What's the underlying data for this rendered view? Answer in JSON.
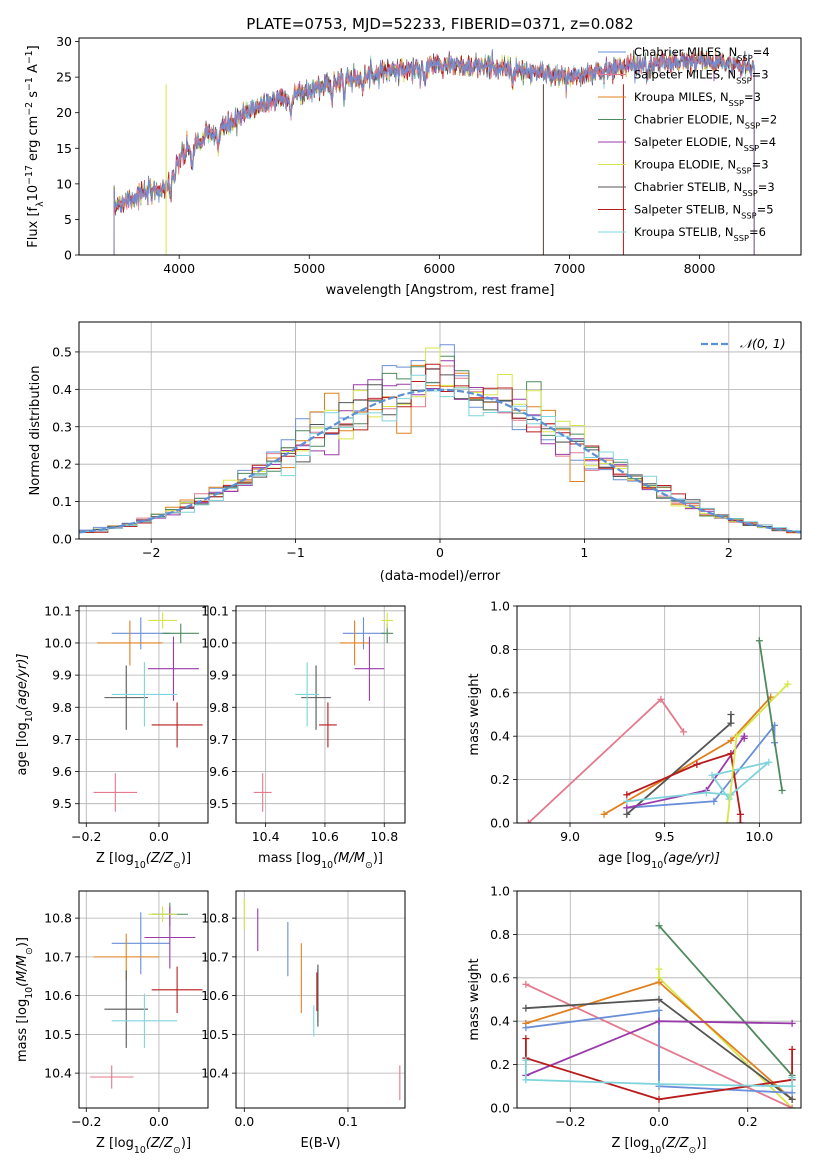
{
  "colors": {
    "chabrier_miles": "#6a8fd8",
    "salpeter_miles": "#e37a8e",
    "kroupa_miles": "#e0801e",
    "chabrier_elodie": "#4f8a5e",
    "salpeter_elodie": "#9a3aaa",
    "kroupa_elodie": "#d6e64a",
    "chabrier_stelib": "#555555",
    "salpeter_stelib": "#b81c1c",
    "kroupa_stelib": "#7fd4dc",
    "gaussian": "#5b8fd6"
  },
  "chart_data": [
    {
      "id": "spectrum",
      "type": "line",
      "title": "PLATE=0753, MJD=52233, FIBERID=0371, z=0.082",
      "xlabel": "wavelength [Angstrom, rest frame]",
      "ylabel_main": "Flux [f",
      "ylabel_sub": "λ",
      "ylabel_rest": "10",
      "ylabel_exp1": "−17",
      "ylabel_mid": " erg cm",
      "ylabel_exp2": "−2",
      "ylabel_mid2": " s",
      "ylabel_exp3": "−1",
      "ylabel_mid3": " A",
      "ylabel_exp4": "−1",
      "ylabel_end": "]",
      "xlim": [
        3230,
        8780
      ],
      "ylim": [
        0,
        30.5
      ],
      "xticks": [
        4000,
        5000,
        6000,
        7000,
        8000
      ],
      "yticks": [
        0,
        5,
        10,
        15,
        20,
        25,
        30
      ],
      "grid": false,
      "legend": "upper-right",
      "series": [
        {
          "label_main": "Chabrier MILES, N",
          "label_sub": "SSP",
          "label_end": "=4",
          "color": "#6a8fd8"
        },
        {
          "label_main": "Salpeter MILES, N",
          "label_sub": "SSP",
          "label_end": "=3",
          "color": "#e37a8e"
        },
        {
          "label_main": "Kroupa MILES, N",
          "label_sub": "SSP",
          "label_end": "=3",
          "color": "#e0801e"
        },
        {
          "label_main": "Chabrier ELODIE, N",
          "label_sub": "SSP",
          "label_end": "=2",
          "color": "#4f8a5e"
        },
        {
          "label_main": "Salpeter ELODIE, N",
          "label_sub": "SSP",
          "label_end": "=4",
          "color": "#9a3aaa"
        },
        {
          "label_main": "Kroupa ELODIE, N",
          "label_sub": "SSP",
          "label_end": "=3",
          "color": "#d6e64a"
        },
        {
          "label_main": "Chabrier STELIB, N",
          "label_sub": "SSP",
          "label_end": "=3",
          "color": "#555555"
        },
        {
          "label_main": "Salpeter STELIB, N",
          "label_sub": "SSP",
          "label_end": "=5",
          "color": "#b81c1c"
        },
        {
          "label_main": "Kroupa STELIB, N",
          "label_sub": "SSP",
          "label_end": "=6",
          "color": "#7fd4dc"
        }
      ],
      "continuum": {
        "x": [
          3500,
          3700,
          3900,
          4000,
          4200,
          4400,
          4600,
          4800,
          5000,
          5200,
          5400,
          5600,
          5800,
          6000,
          6200,
          6400,
          6600,
          6800,
          7000,
          7200,
          7400,
          7600,
          7800,
          8000,
          8200,
          8400
        ],
        "y": [
          7,
          8.5,
          9.5,
          13.5,
          16.5,
          18.5,
          21,
          22,
          23,
          24.5,
          25,
          26,
          26,
          27,
          26.5,
          26.5,
          26,
          25.5,
          25,
          25.5,
          26.5,
          27,
          27,
          27.2,
          27,
          26.5
        ]
      }
    },
    {
      "id": "residuals",
      "type": "histogram",
      "xlabel": "(data-model)/error",
      "ylabel": "Normed distribution",
      "xlim": [
        -2.5,
        2.5
      ],
      "ylim": [
        0,
        0.58
      ],
      "xticks": [
        -2,
        -1,
        0,
        1,
        2
      ],
      "yticks": [
        0.0,
        0.1,
        0.2,
        0.3,
        0.4,
        0.5
      ],
      "grid": true,
      "legend": "upper-right",
      "legend_label": "𝒩(0, 1)",
      "gaussian": {
        "mu": 0,
        "sigma": 1
      }
    },
    {
      "id": "age-vs-z",
      "type": "errorbar",
      "xlabel_main": "Z [log",
      "xlabel_sub": "10",
      "xlabel_end": "(Z/Z",
      "xlabel_sun": "⊙",
      "xlabel_close": ")]",
      "ylabel_main": "age  [log",
      "ylabel_sub": "10",
      "ylabel_end": "(age/yr)]",
      "xlim": [
        -0.22,
        0.135
      ],
      "ylim": [
        9.44,
        10.115
      ],
      "xticks": [
        -0.2,
        0.0
      ],
      "yticks": [
        9.5,
        9.6,
        9.7,
        9.8,
        9.9,
        10.0,
        10.1
      ],
      "grid": true,
      "points": [
        {
          "x": -0.05,
          "xerr": 0.08,
          "y": 10.03,
          "yerr": 0.05,
          "color": "#6a8fd8"
        },
        {
          "x": -0.12,
          "xerr": 0.06,
          "y": 9.535,
          "yerr": 0.06,
          "color": "#e37a8e"
        },
        {
          "x": -0.08,
          "xerr": 0.09,
          "y": 10.0,
          "yerr": 0.07,
          "color": "#e0801e"
        },
        {
          "x": 0.06,
          "xerr": 0.05,
          "y": 10.03,
          "yerr": 0.03,
          "color": "#4f8a5e"
        },
        {
          "x": 0.04,
          "xerr": 0.07,
          "y": 9.92,
          "yerr": 0.1,
          "color": "#9a3aaa"
        },
        {
          "x": 0.01,
          "xerr": 0.04,
          "y": 10.07,
          "yerr": 0.025,
          "color": "#d6e64a"
        },
        {
          "x": -0.09,
          "xerr": 0.06,
          "y": 9.83,
          "yerr": 0.1,
          "color": "#555555"
        },
        {
          "x": 0.05,
          "xerr": 0.07,
          "y": 9.745,
          "yerr": 0.07,
          "color": "#b81c1c"
        },
        {
          "x": -0.04,
          "xerr": 0.09,
          "y": 9.84,
          "yerr": 0.1,
          "color": "#7fd4dc"
        }
      ]
    },
    {
      "id": "age-vs-mass",
      "type": "errorbar",
      "xlabel_main": "mass [log",
      "xlabel_sub": "10",
      "xlabel_end": "(M/M",
      "xlabel_sun": "⊙",
      "xlabel_close": ")]",
      "ylabel_main": "",
      "xlim": [
        10.3,
        10.87
      ],
      "ylim": [
        9.44,
        10.115
      ],
      "xticks": [
        10.4,
        10.6,
        10.8
      ],
      "yticks": [
        9.5,
        9.6,
        9.7,
        9.8,
        9.9,
        10.0,
        10.1
      ],
      "grid": true,
      "points": [
        {
          "x": 10.73,
          "xerr": 0.07,
          "y": 10.03,
          "yerr": 0.05,
          "color": "#6a8fd8"
        },
        {
          "x": 10.39,
          "xerr": 0.03,
          "y": 9.535,
          "yerr": 0.06,
          "color": "#e37a8e"
        },
        {
          "x": 10.7,
          "xerr": 0.05,
          "y": 10.0,
          "yerr": 0.07,
          "color": "#e0801e"
        },
        {
          "x": 10.81,
          "xerr": 0.02,
          "y": 10.03,
          "yerr": 0.03,
          "color": "#4f8a5e"
        },
        {
          "x": 10.75,
          "xerr": 0.05,
          "y": 9.92,
          "yerr": 0.1,
          "color": "#9a3aaa"
        },
        {
          "x": 10.81,
          "xerr": 0.02,
          "y": 10.07,
          "yerr": 0.025,
          "color": "#d6e64a"
        },
        {
          "x": 10.57,
          "xerr": 0.05,
          "y": 9.83,
          "yerr": 0.1,
          "color": "#555555"
        },
        {
          "x": 10.61,
          "xerr": 0.03,
          "y": 9.745,
          "yerr": 0.07,
          "color": "#b81c1c"
        },
        {
          "x": 10.54,
          "xerr": 0.04,
          "y": 9.84,
          "yerr": 0.1,
          "color": "#7fd4dc"
        }
      ]
    },
    {
      "id": "weight-vs-age",
      "type": "line",
      "xlabel_main": "age  [log",
      "xlabel_sub": "10",
      "xlabel_end": "(age/yr)]",
      "ylabel": "mass weight",
      "xlim": [
        8.72,
        10.22
      ],
      "ylim": [
        0,
        1.0
      ],
      "xticks": [
        9.0,
        9.5,
        10.0
      ],
      "yticks": [
        0.0,
        0.2,
        0.4,
        0.6,
        0.8,
        1.0
      ],
      "grid": true,
      "series": [
        {
          "color": "#e37a8e",
          "x": [
            8.78,
            9.48,
            9.6
          ],
          "y": [
            0.0,
            0.57,
            0.42
          ]
        },
        {
          "color": "#e0801e",
          "x": [
            9.18,
            9.85,
            10.06
          ],
          "y": [
            0.04,
            0.38,
            0.58
          ]
        },
        {
          "color": "#6a8fd8",
          "x": [
            9.3,
            9.76,
            10.08,
            10.08
          ],
          "y": [
            0.07,
            0.1,
            0.45,
            0.37
          ]
        },
        {
          "color": "#555555",
          "x": [
            9.3,
            9.85,
            9.85
          ],
          "y": [
            0.04,
            0.46,
            0.5
          ]
        },
        {
          "color": "#9a3aaa",
          "x": [
            9.3,
            9.72,
            9.92,
            9.92
          ],
          "y": [
            0.07,
            0.15,
            0.4,
            0.39
          ]
        },
        {
          "color": "#b81c1c",
          "x": [
            9.3,
            9.67,
            9.85,
            9.9,
            9.9
          ],
          "y": [
            0.13,
            0.27,
            0.32,
            0.04,
            0.0
          ]
        },
        {
          "color": "#7fd4dc",
          "x": [
            9.3,
            9.72,
            9.85,
            10.05,
            9.75,
            9.84
          ],
          "y": [
            0.1,
            0.14,
            0.13,
            0.28,
            0.22,
            0.11
          ]
        },
        {
          "color": "#d6e64a",
          "x": [
            9.83,
            9.88,
            10.15
          ],
          "y": [
            0.0,
            0.4,
            0.64
          ]
        },
        {
          "color": "#4f8a5e",
          "x": [
            10.0,
            10.12
          ],
          "y": [
            0.84,
            0.15
          ]
        }
      ]
    },
    {
      "id": "mass-vs-z",
      "type": "errorbar",
      "xlabel_main": "Z [log",
      "xlabel_sub": "10",
      "xlabel_end": "(Z/Z",
      "xlabel_sun": "⊙",
      "xlabel_close": ")]",
      "ylabel_main": "mass [log",
      "ylabel_sub": "10",
      "ylabel_end": "(M/M",
      "ylabel_sun": "⊙",
      "ylabel_close": ")]",
      "xlim": [
        -0.22,
        0.135
      ],
      "ylim": [
        10.31,
        10.87
      ],
      "xticks": [
        -0.2,
        0.0
      ],
      "yticks": [
        10.4,
        10.5,
        10.6,
        10.7,
        10.8
      ],
      "grid": true,
      "points": [
        {
          "x": -0.05,
          "xerr": 0.08,
          "y": 10.735,
          "yerr": 0.08,
          "color": "#6a8fd8"
        },
        {
          "x": -0.13,
          "xerr": 0.06,
          "y": 10.39,
          "yerr": 0.03,
          "color": "#e37a8e"
        },
        {
          "x": -0.09,
          "xerr": 0.09,
          "y": 10.7,
          "yerr": 0.06,
          "color": "#e0801e"
        },
        {
          "x": 0.03,
          "xerr": 0.05,
          "y": 10.81,
          "yerr": 0.03,
          "color": "#4f8a5e"
        },
        {
          "x": 0.03,
          "xerr": 0.07,
          "y": 10.75,
          "yerr": 0.08,
          "color": "#9a3aaa"
        },
        {
          "x": 0.01,
          "xerr": 0.04,
          "y": 10.81,
          "yerr": 0.02,
          "color": "#d6e64a"
        },
        {
          "x": -0.09,
          "xerr": 0.06,
          "y": 10.565,
          "yerr": 0.1,
          "color": "#555555"
        },
        {
          "x": 0.05,
          "xerr": 0.07,
          "y": 10.615,
          "yerr": 0.06,
          "color": "#b81c1c"
        },
        {
          "x": -0.04,
          "xerr": 0.09,
          "y": 10.535,
          "yerr": 0.07,
          "color": "#7fd4dc"
        }
      ]
    },
    {
      "id": "mass-vs-ebv",
      "type": "errorbar",
      "xlabel": "E(B-V)",
      "xlim": [
        -0.008,
        0.155
      ],
      "ylim": [
        10.31,
        10.87
      ],
      "xticks": [
        0.0,
        0.1
      ],
      "yticks": [
        10.4,
        10.5,
        10.6,
        10.7,
        10.8
      ],
      "grid": true,
      "points": [
        {
          "x": 0.042,
          "xerr": 0.0,
          "y": 10.72,
          "yerr": 0.07,
          "color": "#6a8fd8"
        },
        {
          "x": 0.15,
          "xerr": 0.0,
          "y": 10.375,
          "yerr": 0.045,
          "color": "#e37a8e"
        },
        {
          "x": 0.055,
          "xerr": 0.0,
          "y": 10.645,
          "yerr": 0.09,
          "color": "#e0801e"
        },
        {
          "x": 0.071,
          "xerr": 0.0,
          "y": 10.6,
          "yerr": 0.07,
          "color": "#4f8a5e"
        },
        {
          "x": 0.013,
          "xerr": 0.0,
          "y": 10.77,
          "yerr": 0.055,
          "color": "#9a3aaa"
        },
        {
          "x": 0.0,
          "xerr": 0.0,
          "y": 10.81,
          "yerr": 0.04,
          "color": "#d6e64a"
        },
        {
          "x": 0.071,
          "xerr": 0.0,
          "y": 10.6,
          "yerr": 0.08,
          "color": "#555555"
        },
        {
          "x": 0.07,
          "xerr": 0.0,
          "y": 10.61,
          "yerr": 0.05,
          "color": "#b81c1c"
        },
        {
          "x": 0.067,
          "xerr": 0.0,
          "y": 10.535,
          "yerr": 0.04,
          "color": "#7fd4dc"
        }
      ]
    },
    {
      "id": "weight-vs-z",
      "type": "line",
      "xlabel_main": "Z [log",
      "xlabel_sub": "10",
      "xlabel_end": "(Z/Z",
      "xlabel_sun": "⊙",
      "xlabel_close": ")]",
      "ylabel": "mass weight",
      "xlim": [
        -0.32,
        0.32
      ],
      "ylim": [
        0,
        1.0
      ],
      "xticks": [
        -0.2,
        0.0,
        0.2
      ],
      "yticks": [
        0.0,
        0.2,
        0.4,
        0.6,
        0.8,
        1.0
      ],
      "grid": true,
      "series": [
        {
          "color": "#4f8a5e",
          "x": [
            0.0,
            0.3
          ],
          "y": [
            0.84,
            0.15
          ]
        },
        {
          "color": "#d6e64a",
          "x": [
            0.0,
            0.0,
            0.3
          ],
          "y": [
            0.64,
            0.6,
            0.0
          ]
        },
        {
          "color": "#e0801e",
          "x": [
            -0.3,
            0.0,
            0.3
          ],
          "y": [
            0.39,
            0.58,
            0.04
          ]
        },
        {
          "color": "#e37a8e",
          "x": [
            -0.3,
            0.3
          ],
          "y": [
            0.57,
            0.0
          ]
        },
        {
          "color": "#555555",
          "x": [
            -0.3,
            0.0,
            0.3
          ],
          "y": [
            0.46,
            0.5,
            0.04
          ]
        },
        {
          "color": "#6a8fd8",
          "x": [
            -0.3,
            0.0,
            0.0,
            0.3
          ],
          "y": [
            0.37,
            0.45,
            0.1,
            0.07
          ]
        },
        {
          "color": "#9a3aaa",
          "x": [
            -0.3,
            0.0,
            0.3
          ],
          "y": [
            0.15,
            0.4,
            0.39
          ]
        },
        {
          "color": "#b81c1c",
          "x": [
            -0.3,
            -0.3,
            0.0,
            0.3,
            0.3
          ],
          "y": [
            0.32,
            0.23,
            0.04,
            0.13,
            0.27
          ]
        },
        {
          "color": "#7fd4dc",
          "x": [
            -0.3,
            -0.3,
            0.0,
            0.3,
            0.3
          ],
          "y": [
            0.22,
            0.13,
            0.11,
            0.1,
            0.14
          ]
        }
      ]
    }
  ]
}
